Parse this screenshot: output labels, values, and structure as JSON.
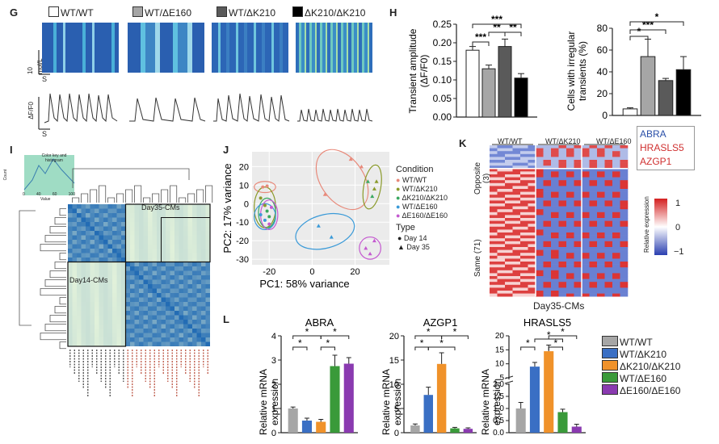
{
  "panel_g": {
    "label": "G",
    "groups": [
      {
        "name": "WT/WT",
        "color": "#ffffff"
      },
      {
        "name": "WT/ΔE160",
        "color": "#a6a6a6"
      },
      {
        "name": "WT/ΔK210",
        "color": "#5a5a5a"
      },
      {
        "name": "ΔK210/ΔK210",
        "color": "#000000"
      }
    ],
    "scale_y": "10 mol/L",
    "scale_x": "S",
    "trace_y": "ΔF/F0",
    "trace_x": "S"
  },
  "panel_h": {
    "label": "H",
    "colors": [
      "#ffffff",
      "#a6a6a6",
      "#5a5a5a",
      "#000000"
    ]
  },
  "panel_i": {
    "label": "I",
    "key_title": "Color key and histogram",
    "key_ylabel": "Count",
    "key_ticks": [
      "0",
      "40",
      "60",
      "100"
    ],
    "key_xlabel": "Value",
    "box1": "Day35-CMs",
    "box2": "Day14-CMs"
  },
  "panel_j": {
    "label": "J",
    "legend_condition_title": "Condition",
    "conditions": [
      {
        "name": "WT/WT",
        "color": "#e8897a"
      },
      {
        "name": "WT/ΔK210",
        "color": "#8a9a2a"
      },
      {
        "name": "ΔK210/ΔK210",
        "color": "#3aa860"
      },
      {
        "name": "WT/ΔE160",
        "color": "#3a9ad8"
      },
      {
        "name": "ΔE160/ΔE160",
        "color": "#c45ad0"
      }
    ],
    "legend_type_title": "Type",
    "types": [
      "Day 14",
      "Day 35"
    ]
  },
  "panel_k": {
    "label": "K",
    "col_groups": [
      "WT/WT",
      "WT/ΔK210",
      "WT/ΔE160"
    ],
    "row_groups": [
      "Opposite (3)",
      "Same (71)"
    ],
    "genes": [
      {
        "name": "ABRA",
        "color": "#2a4fa8"
      },
      {
        "name": "HRASLS5",
        "color": "#d03030"
      },
      {
        "name": "AZGP1",
        "color": "#d03030"
      }
    ],
    "scale_ticks": [
      "1",
      "0",
      "−1"
    ],
    "scale_label": "Relative expression",
    "xlabel": "Day35-CMs"
  },
  "panel_l": {
    "label": "L",
    "ylabel": "Relative mRNA expression",
    "star": "*",
    "legend": [
      {
        "name": "WT/WT",
        "color": "#a6a6a6"
      },
      {
        "name": "WT/ΔK210",
        "color": "#3a6fc4"
      },
      {
        "name": "ΔK210/ΔK210",
        "color": "#f0922a"
      },
      {
        "name": "WT/ΔE160",
        "color": "#3a9a3a"
      },
      {
        "name": "ΔE160/ΔE160",
        "color": "#8a3ab0"
      }
    ]
  },
  "chart_data": [
    {
      "type": "bar",
      "id": "h-amplitude",
      "categories": [
        "WT/WT",
        "WT/ΔE160",
        "WT/ΔK210",
        "ΔK210/ΔK210"
      ],
      "values": [
        0.18,
        0.13,
        0.19,
        0.105
      ],
      "errors": [
        0.01,
        0.01,
        0.02,
        0.012
      ],
      "ylabel": "Transient amplitude (ΔF/F0)",
      "ylim": [
        0,
        0.25
      ],
      "yticks": [
        "0.00",
        "0.05",
        "0.10",
        "0.15",
        "0.20",
        "0.25"
      ],
      "significance": [
        "***",
        "**",
        "**",
        "***"
      ]
    },
    {
      "type": "bar",
      "id": "h-irregular",
      "categories": [
        "WT/WT",
        "WT/ΔE160",
        "WT/ΔK210",
        "ΔK210/ΔK210"
      ],
      "values": [
        6,
        54,
        32,
        42
      ],
      "errors": [
        1,
        16,
        2,
        12
      ],
      "ylabel": "Cells with irregular transients (%)",
      "ylim": [
        0,
        80
      ],
      "yticks": [
        "0",
        "20",
        "40",
        "60",
        "80"
      ],
      "significance": [
        "*",
        "***",
        "*"
      ]
    },
    {
      "type": "scatter",
      "id": "j-pca",
      "xlabel": "PC1: 58% variance",
      "ylabel": "PC2: 17% variance",
      "xticks": [
        "-20",
        "0",
        "20"
      ],
      "yticks": [
        "20",
        "10",
        "0",
        "-10",
        "-20",
        "-30"
      ],
      "xlim": [
        -28,
        36
      ],
      "ylim": [
        -33,
        28
      ],
      "points": [
        {
          "x": -23,
          "y": 9,
          "c": 0,
          "t": 0
        },
        {
          "x": -21,
          "y": 9.5,
          "c": 0,
          "t": 0
        },
        {
          "x": -24,
          "y": 3,
          "c": 1,
          "t": 0
        },
        {
          "x": -22,
          "y": -1,
          "c": 1,
          "t": 0
        },
        {
          "x": -21,
          "y": -4,
          "c": 2,
          "t": 0
        },
        {
          "x": -20,
          "y": -7,
          "c": 2,
          "t": 0
        },
        {
          "x": -24,
          "y": -6,
          "c": 3,
          "t": 0
        },
        {
          "x": -22,
          "y": -9,
          "c": 3,
          "t": 0
        },
        {
          "x": -20,
          "y": -11,
          "c": 4,
          "t": 0
        },
        {
          "x": -19,
          "y": -2,
          "c": 4,
          "t": 0
        },
        {
          "x": 6,
          "y": 5,
          "c": 0,
          "t": 1
        },
        {
          "x": 23,
          "y": 20,
          "c": 0,
          "t": 1
        },
        {
          "x": 18,
          "y": 24,
          "c": 0,
          "t": 1
        },
        {
          "x": 29,
          "y": 8,
          "c": 1,
          "t": 1
        },
        {
          "x": 30,
          "y": 12,
          "c": 1,
          "t": 1
        },
        {
          "x": 26,
          "y": 12,
          "c": 2,
          "t": 1
        },
        {
          "x": 28,
          "y": 4,
          "c": 2,
          "t": 1
        },
        {
          "x": 3,
          "y": -12,
          "c": 3,
          "t": 1
        },
        {
          "x": 9,
          "y": -18,
          "c": 3,
          "t": 1
        },
        {
          "x": 25,
          "y": -24,
          "c": 4,
          "t": 1
        },
        {
          "x": 29,
          "y": -20,
          "c": 4,
          "t": 1
        },
        {
          "x": 27,
          "y": -27,
          "c": 4,
          "t": 1
        }
      ]
    },
    {
      "type": "bar",
      "id": "l-abra",
      "title": "ABRA",
      "categories": [
        "WT/WT",
        "WT/ΔK210",
        "ΔK210/ΔK210",
        "WT/ΔE160",
        "ΔE160/ΔE160"
      ],
      "values": [
        1.0,
        0.5,
        0.45,
        2.75,
        2.85
      ],
      "errors": [
        0.06,
        0.1,
        0.1,
        0.45,
        0.25
      ],
      "ylim": [
        0,
        4
      ],
      "yticks": [
        "0",
        "1",
        "2",
        "3",
        "4"
      ]
    },
    {
      "type": "bar",
      "id": "l-azgp1",
      "title": "AZGP1",
      "categories": [
        "WT/WT",
        "WT/ΔK210",
        "ΔK210/ΔK210",
        "WT/ΔE160",
        "ΔE160/ΔE160"
      ],
      "values": [
        1.5,
        7.8,
        14.2,
        0.9,
        0.8
      ],
      "errors": [
        0.3,
        1.6,
        2.3,
        0.2,
        0.2
      ],
      "ylim": [
        0,
        20
      ],
      "yticks": [
        "0",
        "5",
        "10",
        "15",
        "20"
      ]
    },
    {
      "type": "bar",
      "id": "l-hraslS5",
      "title": "HRASLS5",
      "categories": [
        "WT/WT",
        "WT/ΔK210",
        "ΔK210/ΔK210",
        "WT/ΔE160",
        "ΔE160/ΔE160"
      ],
      "values": [
        1.0,
        9,
        14.5,
        0.85,
        0.25
      ],
      "errors": [
        0.25,
        1.5,
        2.2,
        0.12,
        0.1
      ],
      "broken_axis": [
        2,
        5
      ],
      "ylim": [
        0,
        20
      ],
      "yticks": [
        "0.0",
        "0.5",
        "1.0",
        "1.5",
        "2.0",
        "5",
        "10",
        "15",
        "20"
      ]
    }
  ]
}
